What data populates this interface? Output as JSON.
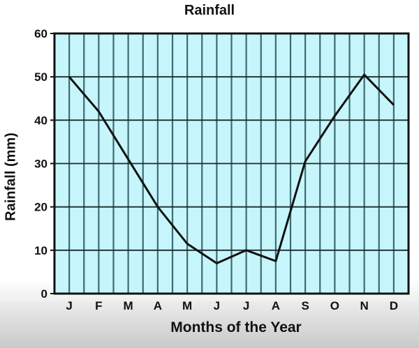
{
  "chart_data": {
    "type": "line",
    "title": "Rainfall",
    "xlabel": "Months of the Year",
    "ylabel": "Rainfall (mm)",
    "categories": [
      "J",
      "F",
      "M",
      "A",
      "M",
      "J",
      "J",
      "A",
      "S",
      "O",
      "N",
      "D"
    ],
    "series": [
      {
        "name": "Rainfall",
        "values": [
          50,
          42,
          31,
          20,
          11.5,
          7,
          10,
          7.5,
          30.5,
          41,
          50.5,
          43.5
        ]
      }
    ],
    "yticks": [
      0,
      10,
      20,
      30,
      40,
      50,
      60
    ],
    "ylim": [
      0,
      60
    ],
    "grid": true,
    "legend": null,
    "colors": {
      "plot_background": "#c6f6fb",
      "grid_vertical": "#3e6b70",
      "grid_horizontal": "#1c2a2b",
      "line": "#111111"
    }
  }
}
